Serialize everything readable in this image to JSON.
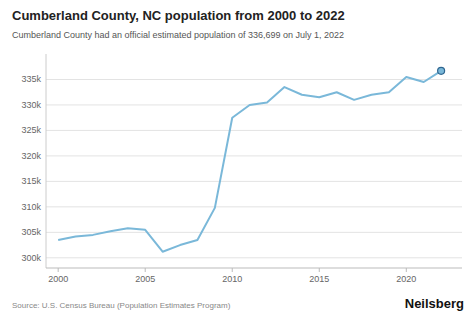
{
  "chart_data": {
    "type": "line",
    "title": "Cumberland County, NC population from 2000 to 2022",
    "subtitle": "Cumberland County had an official estimated population of 336,699 on July 1, 2022",
    "annotations": [
      "Source: U.S. Census Bureau (Population Estimates Program)",
      "Neilsberg"
    ],
    "x": [
      2000,
      2001,
      2002,
      2003,
      2004,
      2005,
      2006,
      2007,
      2008,
      2009,
      2010,
      2011,
      2012,
      2013,
      2014,
      2015,
      2016,
      2017,
      2018,
      2019,
      2020,
      2021,
      2022
    ],
    "values": [
      303500,
      304200,
      304500,
      305200,
      305800,
      305500,
      301200,
      302500,
      303500,
      309800,
      327500,
      330000,
      330500,
      333500,
      332000,
      331500,
      332500,
      331000,
      332000,
      332500,
      335500,
      334500,
      336699
    ],
    "color": "#7ab8d9",
    "xlim": [
      1999.3,
      2023.2
    ],
    "xticks": [
      2000,
      2005,
      2010,
      2015,
      2020
    ],
    "ylim": [
      298000,
      340000
    ],
    "yticks": [
      {
        "value": 300000,
        "label": "300k"
      },
      {
        "value": 305000,
        "label": "305k"
      },
      {
        "value": 310000,
        "label": "310k"
      },
      {
        "value": 315000,
        "label": "315k"
      },
      {
        "value": 320000,
        "label": "320k"
      },
      {
        "value": 325000,
        "label": "325k"
      },
      {
        "value": 330000,
        "label": "330k"
      },
      {
        "value": 335000,
        "label": "335k"
      }
    ],
    "grid": true
  }
}
